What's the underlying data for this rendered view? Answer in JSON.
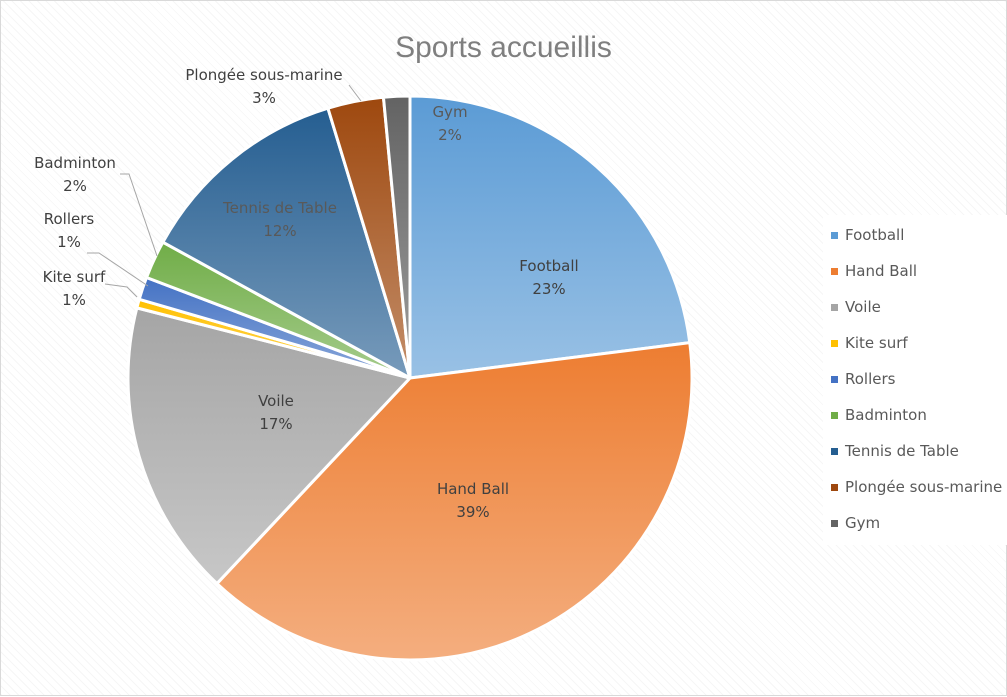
{
  "chart_data": {
    "type": "pie",
    "title": "Sports accueillis",
    "legend_position": "right",
    "slices": [
      {
        "name": "Football",
        "label": "23%",
        "value": 23,
        "color": "#5B9BD5"
      },
      {
        "name": "Hand Ball",
        "label": "39%",
        "value": 39,
        "color": "#ED7D31"
      },
      {
        "name": "Voile",
        "label": "17%",
        "value": 17,
        "color": "#A5A5A5"
      },
      {
        "name": "Kite surf",
        "label": "1%",
        "value": 0.5,
        "color": "#FFC000"
      },
      {
        "name": "Rollers",
        "label": "1%",
        "value": 1.3,
        "color": "#4472C4"
      },
      {
        "name": "Badminton",
        "label": "2%",
        "value": 2.2,
        "color": "#70AD47"
      },
      {
        "name": "Tennis de Table",
        "label": "12%",
        "value": 12.3,
        "color": "#255E91"
      },
      {
        "name": "Plongée sous-marine",
        "label": "3%",
        "value": 3.2,
        "color": "#9E480E"
      },
      {
        "name": "Gym",
        "label": "2%",
        "value": 1.5,
        "color": "#636363"
      }
    ]
  }
}
